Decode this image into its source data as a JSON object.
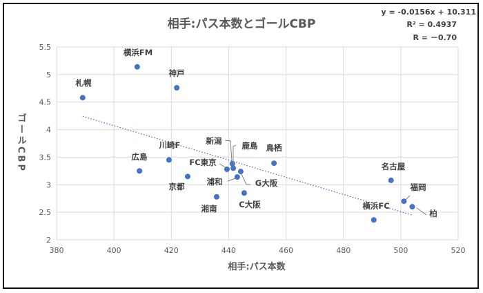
{
  "chart_data": {
    "type": "scatter",
    "title": "相手:パス本数とゴールCBP",
    "xlabel": "相手:パス本数",
    "ylabel": "ゴールCBP",
    "xlim": [
      380,
      520
    ],
    "ylim": [
      2,
      5.5
    ],
    "xticks": [
      380,
      400,
      420,
      440,
      460,
      480,
      500,
      520
    ],
    "yticks": [
      2,
      2.5,
      3,
      3.5,
      4,
      4.5,
      5,
      5.5
    ],
    "grid": true,
    "point_color": "#4472C4",
    "points": [
      {
        "label": "札幌",
        "x": 389.1,
        "y": 4.58
      },
      {
        "label": "横浜FM",
        "x": 408.1,
        "y": 5.14
      },
      {
        "label": "神戸",
        "x": 421.9,
        "y": 4.76
      },
      {
        "label": "広島",
        "x": 408.9,
        "y": 3.25
      },
      {
        "label": "川崎F",
        "x": 419.2,
        "y": 3.45
      },
      {
        "label": "京都",
        "x": 425.7,
        "y": 3.15
      },
      {
        "label": "湘南",
        "x": 435.8,
        "y": 2.78
      },
      {
        "label": "FC東京",
        "x": 439.4,
        "y": 3.28
      },
      {
        "label": "新潟",
        "x": 441.3,
        "y": 3.38
      },
      {
        "label": "鹿島",
        "x": 441.6,
        "y": 3.3
      },
      {
        "label": "G大阪",
        "x": 444.2,
        "y": 3.24
      },
      {
        "label": "浦和",
        "x": 443.0,
        "y": 3.14
      },
      {
        "label": "C大阪",
        "x": 445.4,
        "y": 2.85
      },
      {
        "label": "鳥栖",
        "x": 455.8,
        "y": 3.39
      },
      {
        "label": "名古屋",
        "x": 496.6,
        "y": 3.08
      },
      {
        "label": "横浜FC",
        "x": 490.6,
        "y": 2.36
      },
      {
        "label": "福岡",
        "x": 501.1,
        "y": 2.7
      },
      {
        "label": "柏",
        "x": 504.0,
        "y": 2.6
      }
    ],
    "trendline": {
      "type": "linear",
      "slope": -0.0156,
      "intercept": 10.311,
      "x_range": [
        389.1,
        504.0
      ]
    },
    "annotations": [
      "y = -0.0156x + 10.311",
      "R² = 0.4937",
      "R = －0.70"
    ]
  }
}
